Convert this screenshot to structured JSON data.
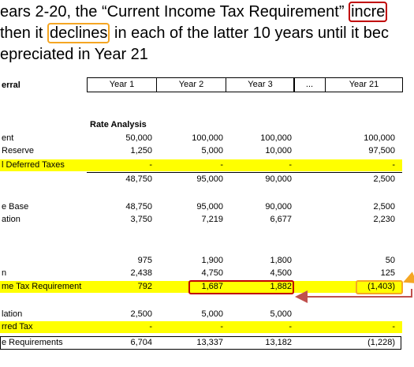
{
  "intro": {
    "lines": [
      [
        "ears 2-20, the “Current Income Tax Requirement” ",
        "incre"
      ],
      [
        "then it ",
        "declines",
        " in each of the latter 10 years until it bec"
      ],
      [
        "epreciated in Year 21"
      ]
    ]
  },
  "table": {
    "header": {
      "label": "erral",
      "columns": [
        "Year 1",
        "Year 2",
        "Year 3",
        "...",
        "Year 21"
      ]
    },
    "section": "Rate Analysis",
    "rows": [
      {
        "label": "ent",
        "cells": [
          "50,000",
          "100,000",
          "100,000",
          "100,000"
        ]
      },
      {
        "label": "Reserve",
        "cells": [
          "1,250",
          "5,000",
          "10,000",
          "97,500"
        ]
      },
      {
        "label": "l Deferred Taxes",
        "cells": [
          "-",
          "-",
          "-",
          "-"
        ],
        "highlight": true
      },
      {
        "cells": [
          "48,750",
          "95,000",
          "90,000",
          "2,500"
        ]
      },
      {
        "label": "e Base",
        "cells": [
          "48,750",
          "95,000",
          "90,000",
          "2,500"
        ]
      },
      {
        "label": "ation",
        "cells": [
          "3,750",
          "7,219",
          "6,677",
          "2,230"
        ]
      },
      {
        "cells": [
          "975",
          "1,900",
          "1,800",
          "50"
        ]
      },
      {
        "label": "n",
        "cells": [
          "2,438",
          "4,750",
          "4,500",
          "125"
        ]
      },
      {
        "label": "me Tax Requirement",
        "cells": [
          "792",
          "1,687",
          "1,882",
          "(1,403)"
        ],
        "highlight": true
      },
      {
        "label": "lation",
        "cells": [
          "2,500",
          "5,000",
          "5,000",
          null
        ]
      },
      {
        "label": "rred Tax",
        "cells": [
          "-",
          "-",
          "-",
          "-"
        ],
        "highlight": true
      },
      {
        "label": "e Requirements",
        "cells": [
          "6,704",
          "13,337",
          "13,182",
          "(1,228)"
        ]
      }
    ]
  }
}
